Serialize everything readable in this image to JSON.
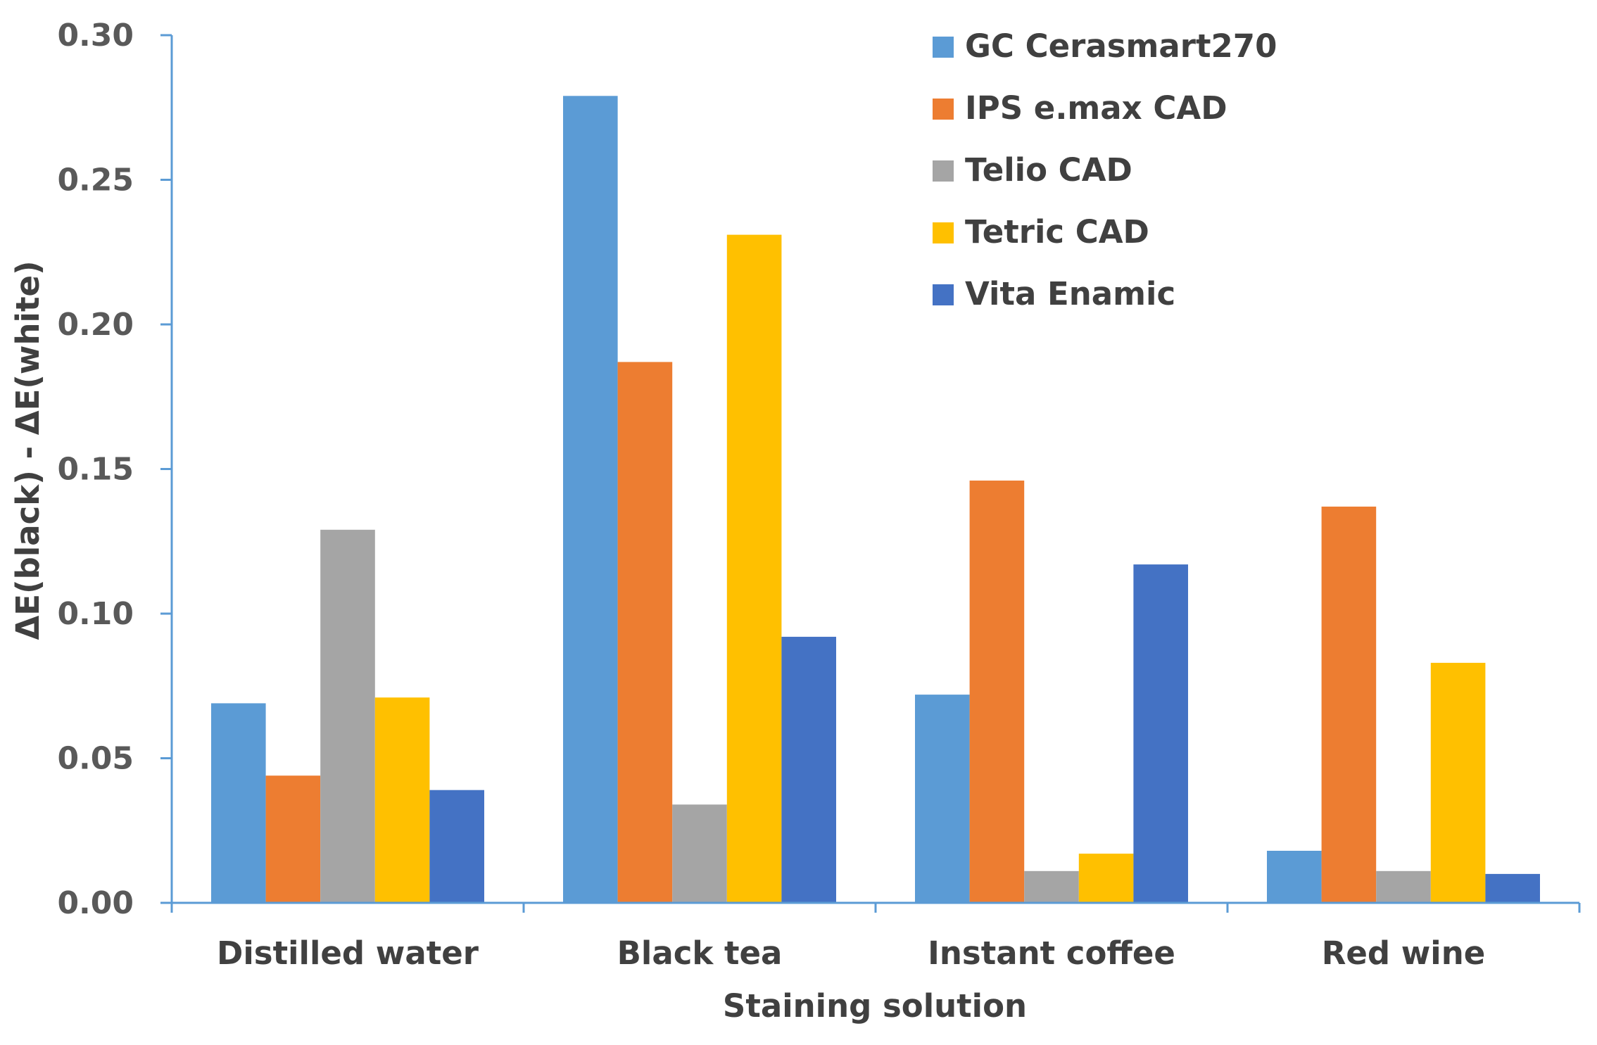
{
  "chart_data": {
    "type": "bar",
    "title": "",
    "xlabel": "Staining solution",
    "ylabel": "ΔE(black) - ΔE(white)",
    "ylim": [
      0,
      0.3
    ],
    "yticks": [
      "0.00",
      "0.05",
      "0.10",
      "0.15",
      "0.20",
      "0.25",
      "0.30"
    ],
    "categories": [
      "Distilled water",
      "Black tea",
      "Instant coffee",
      "Red wine"
    ],
    "legend_position": "top-right",
    "grid": false,
    "series": [
      {
        "name": "GC Cerasmart270",
        "color": "#5B9BD5",
        "values": [
          0.069,
          0.279,
          0.072,
          0.018
        ]
      },
      {
        "name": "IPS e.max CAD",
        "color": "#ED7D31",
        "values": [
          0.044,
          0.187,
          0.146,
          0.137
        ]
      },
      {
        "name": "Telio CAD",
        "color": "#A5A5A5",
        "values": [
          0.129,
          0.034,
          0.011,
          0.011
        ]
      },
      {
        "name": "Tetric CAD",
        "color": "#FFC000",
        "values": [
          0.071,
          0.231,
          0.017,
          0.083
        ]
      },
      {
        "name": "Vita Enamic",
        "color": "#4472C4",
        "values": [
          0.039,
          0.092,
          0.117,
          0.01
        ]
      }
    ],
    "axis_color": "#5B9BD5"
  }
}
